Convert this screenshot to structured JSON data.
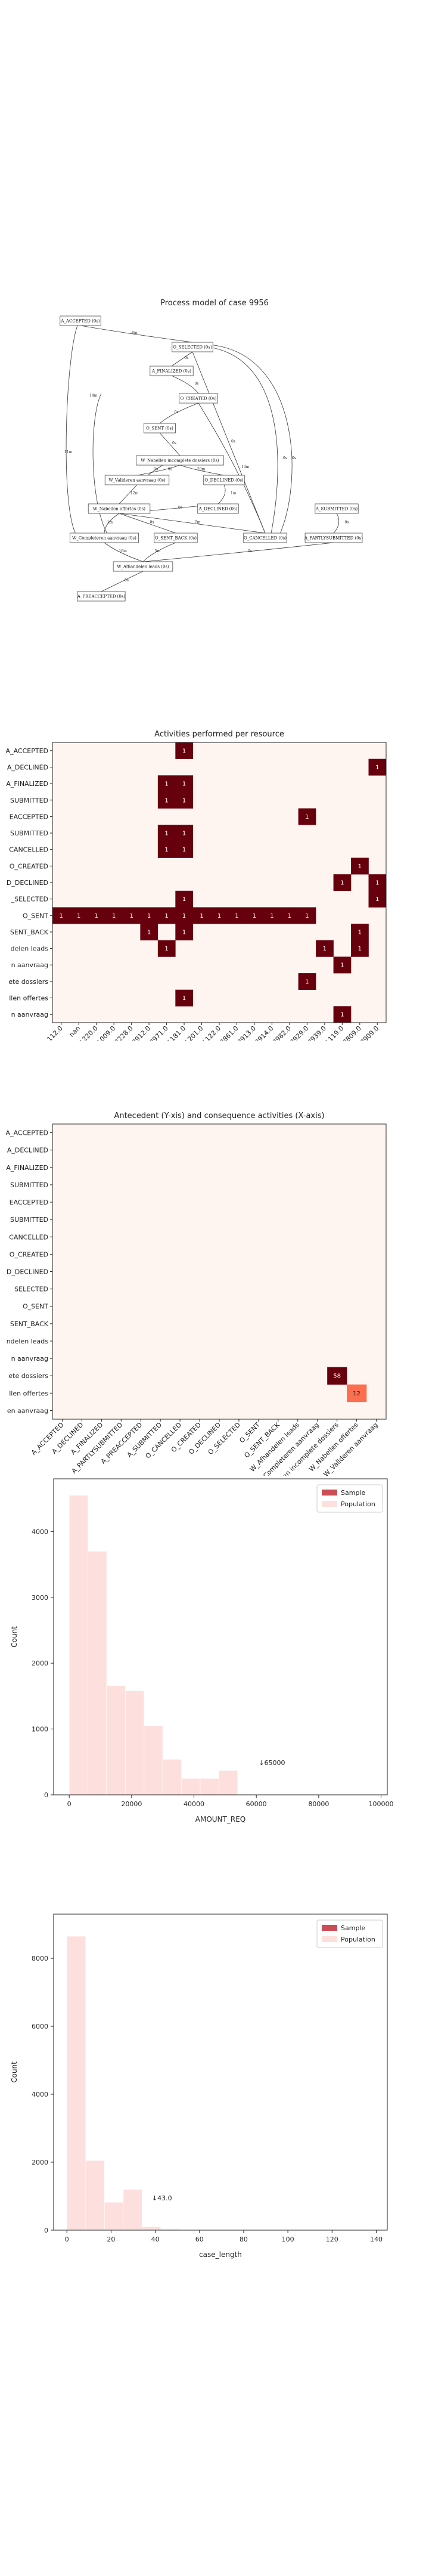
{
  "process_model": {
    "title": "Process model of case 9956",
    "nodes": [
      {
        "id": "A_ACCEPTED",
        "label": "A_ACCEPTED (0s)"
      },
      {
        "id": "O_SELECTED",
        "label": "O_SELECTED (0s)"
      },
      {
        "id": "A_FINALIZED",
        "label": "A_FINALIZED (0s)"
      },
      {
        "id": "O_CREATED",
        "label": "O_CREATED (0s)"
      },
      {
        "id": "O_SENT",
        "label": "O_SENT (0s)"
      },
      {
        "id": "W_Nabellen_incompl",
        "label": "W_Nabellen incomplete dossiers (0s)"
      },
      {
        "id": "W_Valideren",
        "label": "W_Valideren aanvraag (0s)"
      },
      {
        "id": "O_DECLINED",
        "label": "O_DECLINED (0s)"
      },
      {
        "id": "W_Nabellen_off",
        "label": "W_Nabellen offertes (0s)"
      },
      {
        "id": "A_DECLINED",
        "label": "A_DECLINED (0s)"
      },
      {
        "id": "A_SUBMITTED",
        "label": "A_SUBMITTED (0s)"
      },
      {
        "id": "W_Completeren",
        "label": "W_Completeren aanvraag (0s)"
      },
      {
        "id": "O_SENT_BACK",
        "label": "O_SENT_BACK (0s)"
      },
      {
        "id": "O_CANCELLED",
        "label": "O_CANCELLED (0s)"
      },
      {
        "id": "A_PARTLYSUBMITTED",
        "label": "A_PARTLYSUBMITTED (0s)"
      },
      {
        "id": "W_Afhandelen",
        "label": "W_Afhandelen leads (0s)"
      },
      {
        "id": "A_PREACCEPTED",
        "label": "A_PREACCEPTED (0s)"
      }
    ],
    "edge_labels": [
      "8m",
      "0s",
      "0s",
      "0s",
      "0s",
      "0s",
      "29m",
      "12m",
      "1m",
      "1m",
      "0s",
      "0s",
      "16m",
      "0s",
      "0s",
      "5m",
      "7m",
      "0s",
      "0s",
      "0s",
      "14m",
      "0s",
      "11m",
      "0s",
      "0s",
      "0s",
      "0s",
      "0s"
    ]
  },
  "charts": [
    {
      "title": "Activities performed per resource",
      "type": "heatmap",
      "rows": [
        "A_ACCEPTED",
        "A_DECLINED",
        "A_FINALIZED",
        "A_PARTLYSUBMITTED",
        "A_PREACCEPTED",
        "A_SUBMITTED",
        "O_CANCELLED",
        "O_CREATED",
        "O_DECLINED",
        "O_SELECTED",
        "O_SENT",
        "O_SENT_BACK",
        "W_Afhandelen leads",
        "W_Completeren aanvraag",
        "W_Nabellen incomplete dossiers",
        "W_Nabellen offertes",
        "W_Valideren aanvraag"
      ],
      "row_labels_visible": [
        "A_ACCEPTED",
        "A_DECLINED",
        "A_FINALIZED",
        "SUBMITTED",
        "EACCEPTED",
        "SUBMITTED",
        "CANCELLED",
        "O_CREATED",
        "D_DECLINED",
        "_SELECTED",
        "O_SENT",
        "SENT_BACK",
        "delen leads",
        "n aanvraag",
        "ete dossiers",
        "llen offertes",
        "n aanvraag"
      ],
      "columns": [
        "112.0",
        "nan",
        "11220.0",
        "11009.0",
        "10228.0",
        "10912.0",
        "10971.0",
        "11181.0",
        "11201.0",
        "11122.0",
        "10861.0",
        "10913.0",
        "10914.0",
        "10982.0",
        "10929.0",
        "10939.0",
        "11119.0",
        "10809.0",
        "10909.0"
      ],
      "cells": [
        {
          "r": 0,
          "c": 7,
          "v": 1
        },
        {
          "r": 1,
          "c": 18,
          "v": 1
        },
        {
          "r": 2,
          "c": 6,
          "v": 1
        },
        {
          "r": 2,
          "c": 7,
          "v": 1
        },
        {
          "r": 3,
          "c": 6,
          "v": 1
        },
        {
          "r": 3,
          "c": 7,
          "v": 1
        },
        {
          "r": 4,
          "c": 14,
          "v": 1
        },
        {
          "r": 5,
          "c": 6,
          "v": 1
        },
        {
          "r": 5,
          "c": 7,
          "v": 1
        },
        {
          "r": 6,
          "c": 6,
          "v": 1
        },
        {
          "r": 6,
          "c": 7,
          "v": 1
        },
        {
          "r": 7,
          "c": 17,
          "v": 1
        },
        {
          "r": 8,
          "c": 16,
          "v": 1
        },
        {
          "r": 8,
          "c": 18,
          "v": 1
        },
        {
          "r": 9,
          "c": 7,
          "v": 1
        },
        {
          "r": 9,
          "c": 18,
          "v": 1
        },
        {
          "r": 10,
          "c": 0,
          "v": 1
        },
        {
          "r": 10,
          "c": 1,
          "v": 1
        },
        {
          "r": 10,
          "c": 2,
          "v": 1
        },
        {
          "r": 10,
          "c": 3,
          "v": 1
        },
        {
          "r": 10,
          "c": 4,
          "v": 1
        },
        {
          "r": 10,
          "c": 5,
          "v": 1
        },
        {
          "r": 10,
          "c": 6,
          "v": 1
        },
        {
          "r": 10,
          "c": 7,
          "v": 1
        },
        {
          "r": 10,
          "c": 8,
          "v": 1
        },
        {
          "r": 10,
          "c": 9,
          "v": 1
        },
        {
          "r": 10,
          "c": 10,
          "v": 1
        },
        {
          "r": 10,
          "c": 11,
          "v": 1
        },
        {
          "r": 10,
          "c": 12,
          "v": 1
        },
        {
          "r": 10,
          "c": 13,
          "v": 1
        },
        {
          "r": 10,
          "c": 14,
          "v": 1
        },
        {
          "r": 11,
          "c": 5,
          "v": 1
        },
        {
          "r": 11,
          "c": 7,
          "v": 1
        },
        {
          "r": 11,
          "c": 17,
          "v": 1
        },
        {
          "r": 12,
          "c": 6,
          "v": 1
        },
        {
          "r": 12,
          "c": 15,
          "v": 1
        },
        {
          "r": 12,
          "c": 17,
          "v": 1
        },
        {
          "r": 13,
          "c": 16,
          "v": 1
        },
        {
          "r": 14,
          "c": 14,
          "v": 1
        },
        {
          "r": 15,
          "c": 7,
          "v": 1
        },
        {
          "r": 16,
          "c": 16,
          "v": 1
        }
      ]
    },
    {
      "title": "Antecedent (Y-xis) and consequence activities (X-axis)",
      "type": "heatmap",
      "rows": [
        "A_ACCEPTED",
        "A_DECLINED",
        "A_FINALIZED",
        "A_PARTLYSUBMITTED",
        "A_PREACCEPTED",
        "A_SUBMITTED",
        "O_CANCELLED",
        "O_CREATED",
        "O_DECLINED",
        "O_SELECTED",
        "O_SENT",
        "O_SENT_BACK",
        "W_Afhandelen leads",
        "W_Completeren aanvraag",
        "W_Nabellen incomplete dossiers",
        "W_Nabellen offertes",
        "W_Valideren aanvraag"
      ],
      "row_labels_visible": [
        "A_ACCEPTED",
        "A_DECLINED",
        "A_FINALIZED",
        "SUBMITTED",
        "EACCEPTED",
        "SUBMITTED",
        "CANCELLED",
        "O_CREATED",
        "D_DECLINED",
        "SELECTED",
        "O_SENT",
        "SENT_BACK",
        "ndelen leads",
        "n aanvraag",
        "ete dossiers",
        "llen offertes",
        "en aanvraag"
      ],
      "columns": [
        "A_ACCEPTED",
        "A_DECLINED",
        "A_FINALIZED",
        "A_PARTLYSUBMITTED",
        "A_PREACCEPTED",
        "A_SUBMITTED",
        "O_CANCELLED",
        "O_CREATED",
        "O_DECLINED",
        "O_SELECTED",
        "O_SENT",
        "O_SENT_BACK",
        "W_Afhandelen leads",
        "W_Completeren aanvraag",
        "W_Nabellen incomplete dossiers",
        "W_Nabellen offertes",
        "W_Valideren aanvraag"
      ],
      "cells": [
        {
          "r": 14,
          "c": 14,
          "v": 58
        },
        {
          "r": 15,
          "c": 15,
          "v": 12
        }
      ]
    },
    {
      "type": "histogram",
      "xlabel": "AMOUNT_REQ",
      "ylabel": "Count",
      "legend": [
        "Sample",
        "Population"
      ],
      "xlim": [
        -5000,
        102000
      ],
      "ylim": [
        0,
        4800
      ],
      "xticks": [
        0,
        20000,
        40000,
        60000,
        80000,
        100000
      ],
      "yticks": [
        0,
        1000,
        2000,
        3000,
        4000
      ],
      "bins": [
        {
          "x0": 0,
          "x1": 6000,
          "v": 4550
        },
        {
          "x0": 6000,
          "x1": 12000,
          "v": 3700
        },
        {
          "x0": 12000,
          "x1": 18000,
          "v": 1660
        },
        {
          "x0": 18000,
          "x1": 24000,
          "v": 1580
        },
        {
          "x0": 24000,
          "x1": 30000,
          "v": 1050
        },
        {
          "x0": 30000,
          "x1": 36000,
          "v": 540
        },
        {
          "x0": 36000,
          "x1": 42000,
          "v": 250
        },
        {
          "x0": 42000,
          "x1": 48000,
          "v": 250
        },
        {
          "x0": 48000,
          "x1": 54000,
          "v": 370
        }
      ],
      "marker": {
        "x": 65000,
        "label": "↓65000"
      }
    },
    {
      "type": "histogram",
      "xlabel": "case_length",
      "ylabel": "Count",
      "legend": [
        "Sample",
        "Population"
      ],
      "xlim": [
        -6,
        145
      ],
      "ylim": [
        0,
        9300
      ],
      "xticks": [
        0,
        20,
        40,
        60,
        80,
        100,
        120,
        140
      ],
      "yticks": [
        0,
        2000,
        4000,
        6000,
        8000
      ],
      "bins": [
        {
          "x0": 0,
          "x1": 8.5,
          "v": 8650
        },
        {
          "x0": 8.5,
          "x1": 17,
          "v": 2050
        },
        {
          "x0": 17,
          "x1": 25.5,
          "v": 820
        },
        {
          "x0": 25.5,
          "x1": 34,
          "v": 1200
        },
        {
          "x0": 34,
          "x1": 42.5,
          "v": 100
        },
        {
          "x0": 42.5,
          "x1": 51,
          "v": 30
        }
      ],
      "marker": {
        "x": 43,
        "label": "↓43.0"
      }
    }
  ],
  "colors": {
    "heat_low": "#fff5f0",
    "heat_high": "#67000d",
    "hist_population": "#fde0dd",
    "hist_sample": "#cb4d56"
  }
}
